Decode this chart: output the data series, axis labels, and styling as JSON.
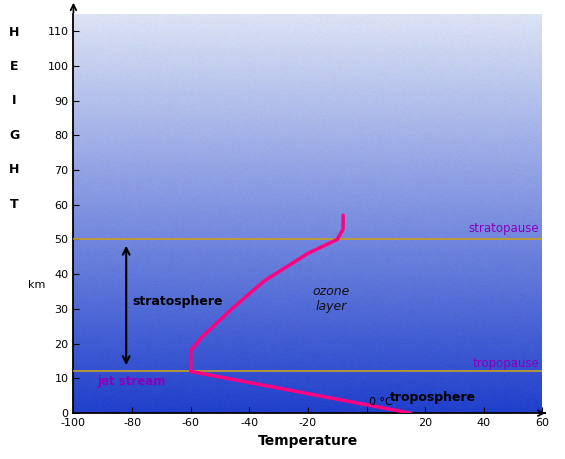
{
  "xlim": [
    -100,
    60
  ],
  "ylim": [
    0,
    115
  ],
  "xticks": [
    -100,
    -80,
    -60,
    -40,
    -20,
    0,
    20,
    40,
    60
  ],
  "yticks": [
    0,
    10,
    20,
    30,
    40,
    50,
    60,
    70,
    80,
    90,
    100,
    110
  ],
  "xlabel": "Temperature",
  "ylabel_letters": [
    "H",
    "E",
    "I",
    "G",
    "H",
    "T"
  ],
  "ylabel_km": "km",
  "tropopause_height": 12,
  "stratopause_height": 50,
  "tropopause_color": "#c8a020",
  "stratopause_color": "#c8a020",
  "profile_color": "#ff0080",
  "profile_linewidth": 2.5,
  "bg_top_color": "#dde4f5",
  "bg_bottom_color": "#2040cc",
  "label_stratopause": "stratopause",
  "label_tropopause": "tropopause",
  "label_stratosphere": "stratosphere",
  "label_troposphere": "troposphere",
  "label_ozone": "ozone\nlayer",
  "label_jetstream": "jet stream",
  "label_0c": "0 °C",
  "label_color_purple": "#8800bb",
  "label_color_black": "#000000",
  "profile_T": [
    15,
    -60,
    -60,
    -60,
    -56,
    -46,
    -35,
    -20,
    -10,
    -8,
    -8
  ],
  "profile_H": [
    0,
    12,
    12,
    18,
    22,
    30,
    38,
    46,
    50,
    53,
    57
  ],
  "noise_seed": 42,
  "noise_alpha": 0.08
}
